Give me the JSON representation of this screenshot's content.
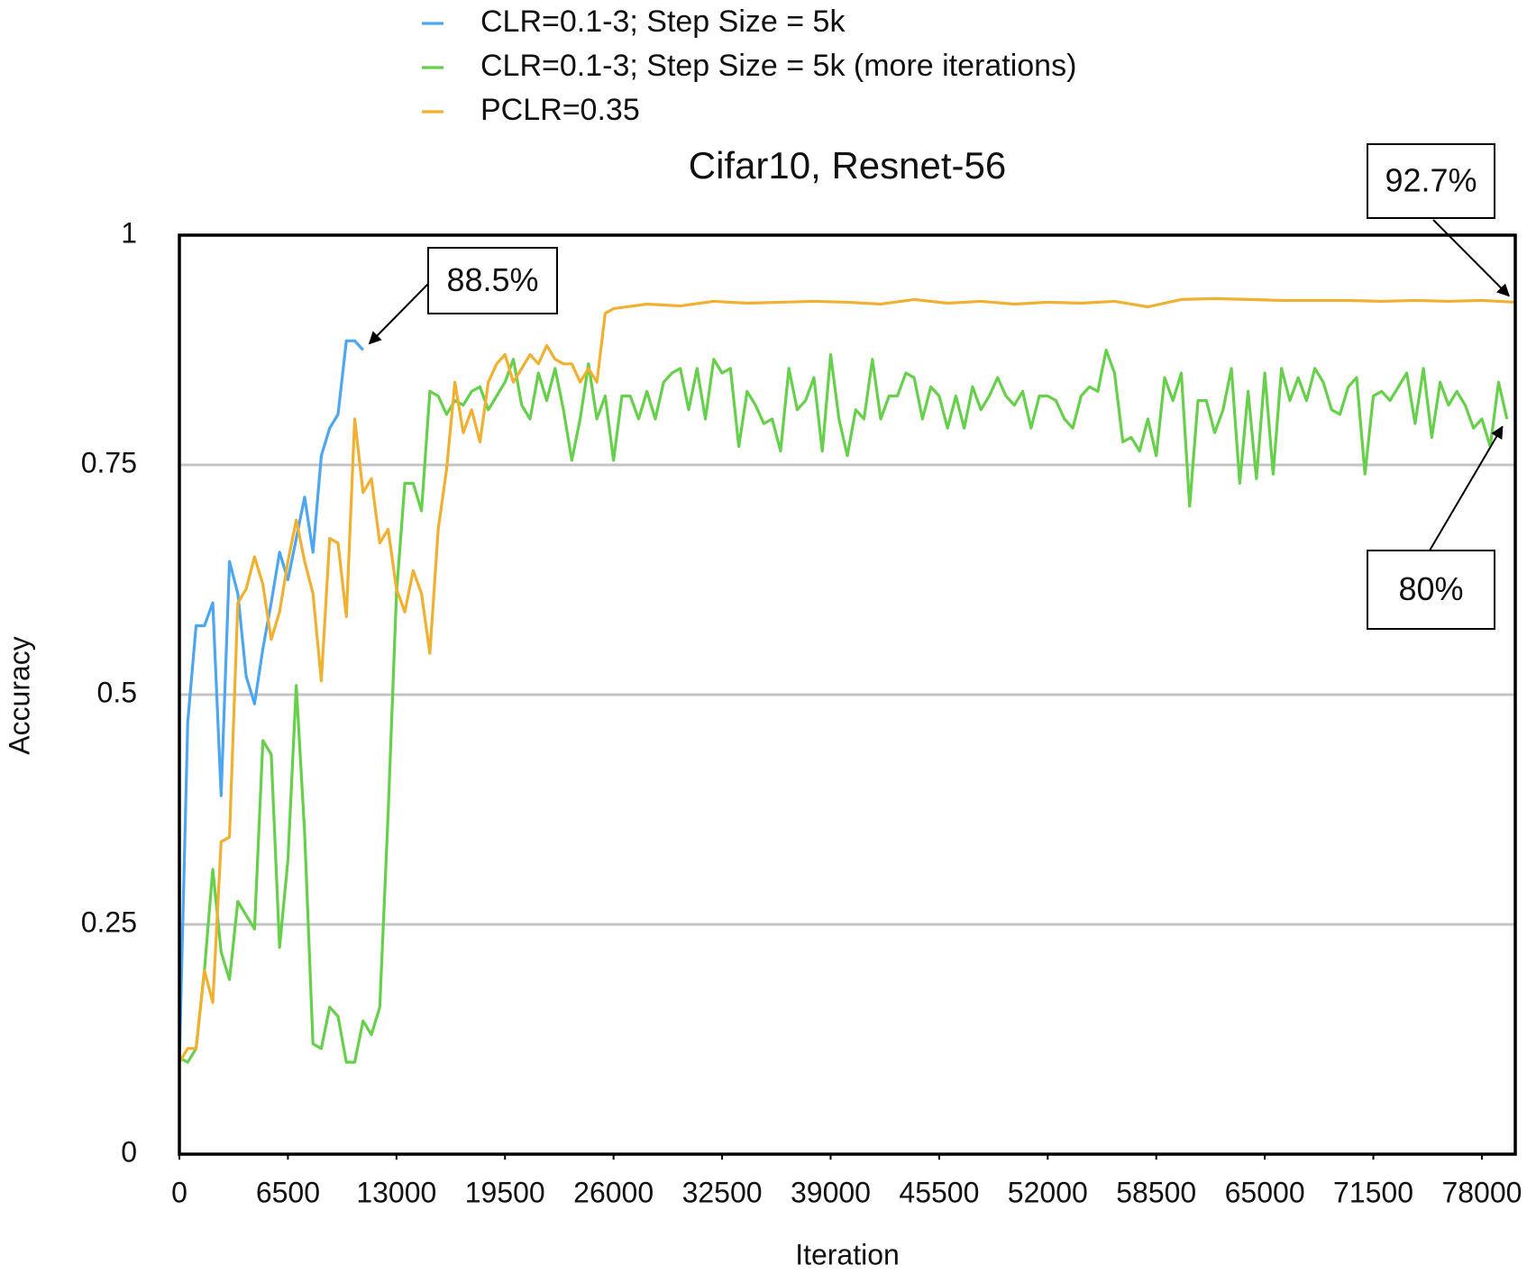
{
  "chart_data": {
    "type": "line",
    "title": "Cifar10, Resnet-56",
    "x_label": "Iteration",
    "y_label": "Accuracy",
    "xlim": [
      0,
      80000
    ],
    "ylim": [
      0,
      1
    ],
    "xticks": [
      0,
      6500,
      13000,
      19500,
      26000,
      32500,
      39000,
      45500,
      52000,
      58500,
      65000,
      71500,
      78000
    ],
    "yticks": [
      0,
      0.25,
      0.5,
      0.75,
      1
    ],
    "grid": true,
    "series": [
      {
        "name": "CLR=0.1-3; Step Size = 5k",
        "color": "#4da6f0",
        "x": [
          0,
          500,
          1000,
          1500,
          2000,
          2500,
          3000,
          3500,
          4000,
          4500,
          5000,
          5500,
          6000,
          6500,
          7000,
          7500,
          8000,
          8500,
          9000,
          9500,
          10000,
          10500,
          11000
        ],
        "values": [
          0.1,
          0.47,
          0.575,
          0.575,
          0.6,
          0.39,
          0.645,
          0.61,
          0.52,
          0.49,
          0.55,
          0.6,
          0.655,
          0.625,
          0.67,
          0.715,
          0.655,
          0.76,
          0.79,
          0.805,
          0.885,
          0.885,
          0.875
        ]
      },
      {
        "name": "CLR=0.1-3; Step Size = 5k (more iterations)",
        "color": "#66d04b",
        "x": [
          0,
          500,
          1000,
          1500,
          2000,
          2500,
          3000,
          3500,
          4000,
          4500,
          5000,
          5500,
          6000,
          6500,
          7000,
          7500,
          8000,
          8500,
          9000,
          9500,
          10000,
          10500,
          11000,
          11500,
          12000,
          12500,
          13000,
          13500,
          14000,
          14500,
          15000,
          15500,
          16000,
          16500,
          17000,
          17500,
          18000,
          18500,
          19000,
          19500,
          20000,
          20500,
          21000,
          21500,
          22000,
          22500,
          23000,
          23500,
          24000,
          24500,
          25000,
          25500,
          26000,
          26500,
          27000,
          27500,
          28000,
          28500,
          29000,
          29500,
          30000,
          30500,
          31000,
          31500,
          32000,
          32500,
          33000,
          33500,
          34000,
          34500,
          35000,
          35500,
          36000,
          36500,
          37000,
          37500,
          38000,
          38500,
          39000,
          39500,
          40000,
          40500,
          41000,
          41500,
          42000,
          42500,
          43000,
          43500,
          44000,
          44500,
          45000,
          45500,
          46000,
          46500,
          47000,
          47500,
          48000,
          48500,
          49000,
          49500,
          50000,
          50500,
          51000,
          51500,
          52000,
          52500,
          53000,
          53500,
          54000,
          54500,
          55000,
          55500,
          56000,
          56500,
          57000,
          57500,
          58000,
          58500,
          59000,
          59500,
          60000,
          60500,
          61000,
          61500,
          62000,
          62500,
          63000,
          63500,
          64000,
          64500,
          65000,
          65500,
          66000,
          66500,
          67000,
          67500,
          68000,
          68500,
          69000,
          69500,
          70000,
          70500,
          71000,
          71500,
          72000,
          72500,
          73000,
          73500,
          74000,
          74500,
          75000,
          75500,
          76000,
          76500,
          77000,
          77500,
          78000,
          78500,
          79000,
          79500
        ],
        "values": [
          0.105,
          0.1,
          0.115,
          0.2,
          0.31,
          0.22,
          0.19,
          0.275,
          0.26,
          0.245,
          0.45,
          0.435,
          0.225,
          0.32,
          0.51,
          0.35,
          0.12,
          0.115,
          0.16,
          0.15,
          0.1,
          0.1,
          0.145,
          0.13,
          0.16,
          0.37,
          0.61,
          0.73,
          0.73,
          0.7,
          0.83,
          0.825,
          0.805,
          0.82,
          0.815,
          0.83,
          0.835,
          0.81,
          0.825,
          0.84,
          0.865,
          0.815,
          0.8,
          0.85,
          0.82,
          0.855,
          0.81,
          0.755,
          0.8,
          0.86,
          0.8,
          0.825,
          0.755,
          0.825,
          0.825,
          0.8,
          0.83,
          0.8,
          0.84,
          0.85,
          0.855,
          0.81,
          0.855,
          0.8,
          0.865,
          0.85,
          0.855,
          0.77,
          0.83,
          0.815,
          0.795,
          0.8,
          0.765,
          0.855,
          0.81,
          0.82,
          0.845,
          0.765,
          0.87,
          0.8,
          0.76,
          0.81,
          0.8,
          0.865,
          0.8,
          0.825,
          0.825,
          0.85,
          0.845,
          0.8,
          0.835,
          0.825,
          0.79,
          0.825,
          0.79,
          0.835,
          0.81,
          0.825,
          0.845,
          0.825,
          0.815,
          0.83,
          0.79,
          0.825,
          0.825,
          0.82,
          0.8,
          0.79,
          0.825,
          0.835,
          0.83,
          0.875,
          0.85,
          0.775,
          0.78,
          0.765,
          0.8,
          0.76,
          0.845,
          0.82,
          0.85,
          0.705,
          0.82,
          0.82,
          0.785,
          0.81,
          0.855,
          0.73,
          0.83,
          0.735,
          0.85,
          0.74,
          0.855,
          0.82,
          0.845,
          0.82,
          0.855,
          0.84,
          0.81,
          0.805,
          0.835,
          0.845,
          0.74,
          0.825,
          0.83,
          0.82,
          0.835,
          0.85,
          0.795,
          0.855,
          0.78,
          0.84,
          0.815,
          0.83,
          0.815,
          0.79,
          0.8,
          0.77,
          0.84,
          0.8
        ]
      },
      {
        "name": "PCLR=0.35",
        "color": "#f0b030",
        "x": [
          0,
          500,
          1000,
          1500,
          2000,
          2500,
          3000,
          3500,
          4000,
          4500,
          5000,
          5500,
          6000,
          6500,
          7000,
          7500,
          8000,
          8500,
          9000,
          9500,
          10000,
          10500,
          11000,
          11500,
          12000,
          12500,
          13000,
          13500,
          14000,
          14500,
          15000,
          15500,
          16000,
          16500,
          17000,
          17500,
          18000,
          18500,
          19000,
          19500,
          20000,
          20500,
          21000,
          21500,
          22000,
          22500,
          23000,
          23500,
          24000,
          24500,
          25000,
          25500,
          26000,
          28000,
          30000,
          32000,
          34000,
          36000,
          38000,
          40000,
          42000,
          44000,
          46000,
          48000,
          50000,
          52000,
          54000,
          56000,
          58000,
          60000,
          62000,
          64000,
          66000,
          68000,
          70000,
          72000,
          74000,
          76000,
          78000,
          80000
        ],
        "values": [
          0.1,
          0.115,
          0.115,
          0.2,
          0.165,
          0.34,
          0.345,
          0.6,
          0.615,
          0.65,
          0.62,
          0.56,
          0.59,
          0.645,
          0.69,
          0.645,
          0.61,
          0.515,
          0.67,
          0.665,
          0.585,
          0.8,
          0.72,
          0.735,
          0.665,
          0.68,
          0.615,
          0.59,
          0.635,
          0.61,
          0.545,
          0.68,
          0.745,
          0.84,
          0.785,
          0.81,
          0.775,
          0.84,
          0.86,
          0.87,
          0.84,
          0.855,
          0.87,
          0.86,
          0.88,
          0.865,
          0.86,
          0.86,
          0.84,
          0.855,
          0.84,
          0.915,
          0.92,
          0.925,
          0.923,
          0.928,
          0.926,
          0.927,
          0.928,
          0.927,
          0.925,
          0.93,
          0.926,
          0.928,
          0.925,
          0.927,
          0.926,
          0.928,
          0.922,
          0.93,
          0.931,
          0.93,
          0.929,
          0.929,
          0.929,
          0.928,
          0.929,
          0.928,
          0.929,
          0.927
        ]
      }
    ],
    "annotations": [
      {
        "text": "88.5%"
      },
      {
        "text": "80%"
      },
      {
        "text": "92.7%"
      }
    ]
  }
}
